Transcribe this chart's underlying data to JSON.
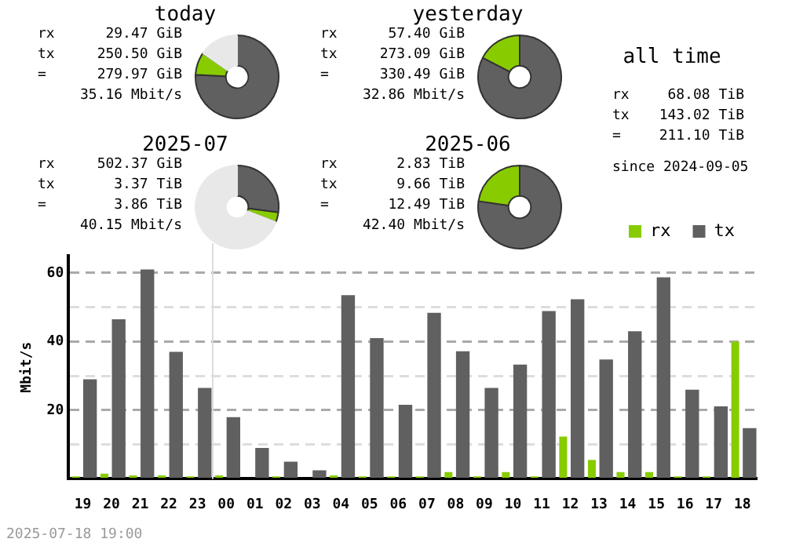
{
  "chart_data": [
    {
      "type": "donut",
      "title": "today",
      "categories": [
        null,
        null,
        null
      ],
      "values": [
        75.8,
        8.9,
        15.3
      ],
      "colors": [
        "#606060",
        "#88cc00",
        "#e8e8e8"
      ],
      "annotations": [
        "rx",
        "29.47 GiB",
        "tx",
        "250.50 GiB",
        "=",
        "279.97 GiB",
        "35.16 Mbit/s"
      ]
    },
    {
      "type": "donut",
      "title": "yesterday",
      "categories": [
        null,
        null
      ],
      "values": [
        82.6,
        17.4
      ],
      "colors": [
        "#606060",
        "#88cc00"
      ],
      "annotations": [
        "rx",
        "57.40 GiB",
        "tx",
        "273.09 GiB",
        "=",
        "330.49 GiB",
        "32.86 Mbit/s"
      ]
    },
    {
      "type": "other",
      "title": "all time",
      "annotations": [
        "rx",
        "68.08 TiB",
        "tx",
        "143.02 TiB",
        "=",
        "211.10 TiB",
        "since 2024-09-05"
      ]
    },
    {
      "type": "donut",
      "title": "2025-07",
      "categories": [
        null,
        null,
        null
      ],
      "values": [
        27.0,
        3.9,
        69.1
      ],
      "colors": [
        "#606060",
        "#88cc00",
        "#e8e8e8"
      ],
      "annotations": [
        "rx",
        "502.37 GiB",
        "tx",
        "3.37 TiB",
        "=",
        "3.86 TiB",
        "40.15 Mbit/s"
      ]
    },
    {
      "type": "donut",
      "title": "2025-06",
      "categories": [
        null,
        null
      ],
      "values": [
        77.3,
        22.7
      ],
      "colors": [
        "#606060",
        "#88cc00"
      ],
      "annotations": [
        "rx",
        "2.83 TiB",
        "tx",
        "9.66 TiB",
        "=",
        "12.49 TiB",
        "42.40 Mbit/s"
      ]
    },
    {
      "type": "bar",
      "ylabel": "Mbit/s",
      "categories": [
        "19",
        "20",
        "21",
        "22",
        "23",
        "00",
        "01",
        "02",
        "03",
        "04",
        "05",
        "06",
        "07",
        "08",
        "09",
        "10",
        "11",
        "12",
        "13",
        "14",
        "15",
        "16",
        "17",
        "18"
      ],
      "series": [
        {
          "name": "rx",
          "color": "#88cc00",
          "values": [
            0.7,
            1.5,
            1,
            1,
            0.7,
            1,
            0,
            0.7,
            0,
            1,
            0.7,
            0.7,
            0.7,
            2,
            0.7,
            2,
            0.7,
            12.3,
            5.5,
            2,
            2,
            0.7,
            0.7,
            40
          ]
        },
        {
          "name": "tx",
          "color": "#606060",
          "values": [
            29,
            46.5,
            61,
            37,
            26.5,
            18,
            9,
            5,
            2.5,
            53.5,
            41,
            21.6,
            48.4,
            37.2,
            26.5,
            33.3,
            48.9,
            52.3,
            34.8,
            43,
            58.7,
            26,
            21.1,
            14.8
          ]
        }
      ],
      "ylim": [
        0,
        65
      ],
      "yticks": [
        {
          "value": 0,
          "label": null
        },
        {
          "value": 10,
          "label": null
        },
        20,
        {
          "value": 30,
          "label": null
        },
        40,
        {
          "value": 50,
          "label": null
        },
        60
      ],
      "grid": "y",
      "legend": "top right",
      "ref_lines": [
        {
          "axis": "x",
          "value": "00",
          "color": "#dddddd"
        }
      ],
      "annotations": [
        "2025-07-18 19:00"
      ]
    }
  ]
}
